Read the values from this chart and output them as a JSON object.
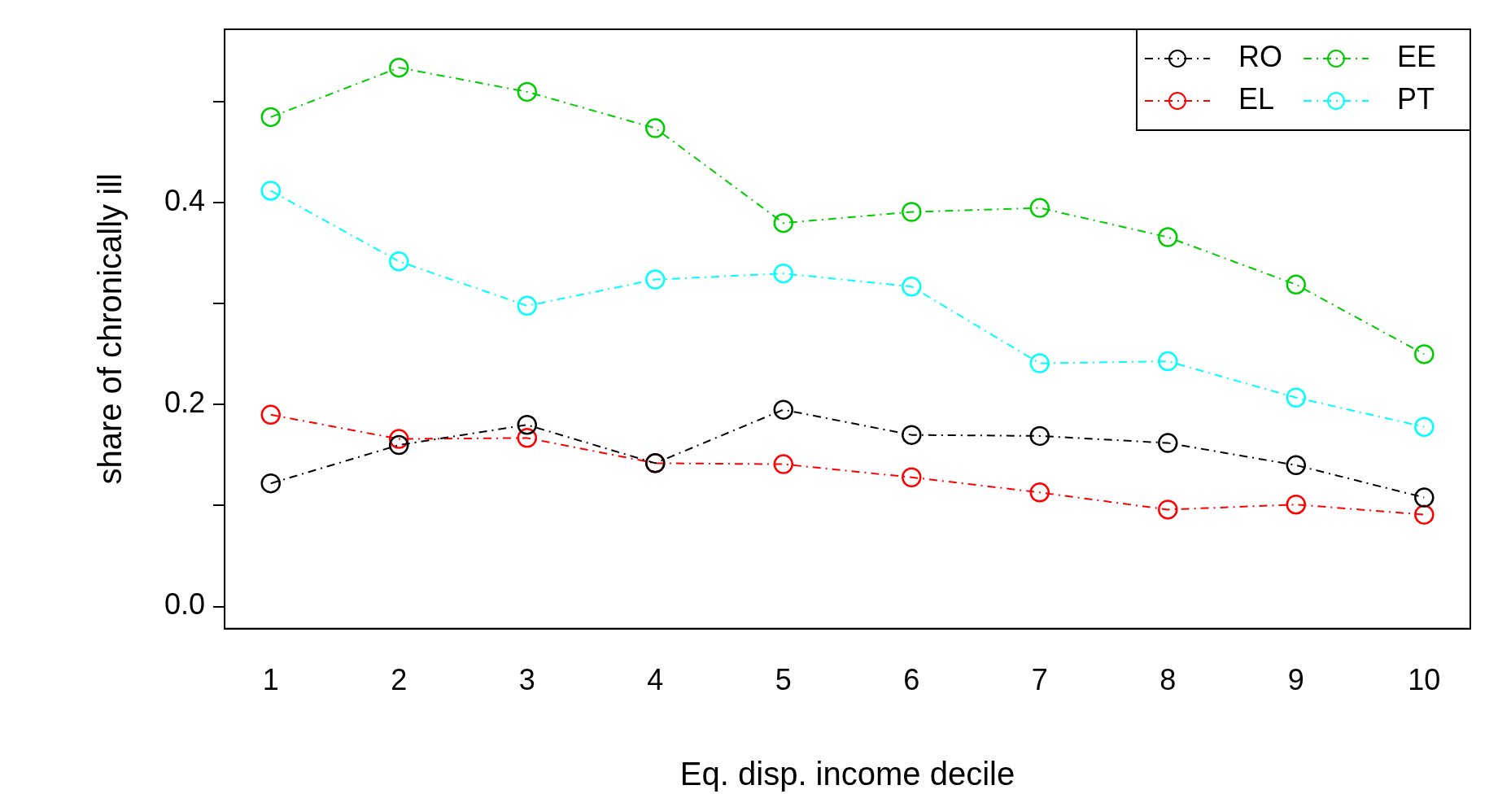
{
  "chart_data": {
    "type": "line",
    "xlabel": "Eq. disp. income decile",
    "ylabel": "share of chronically ill",
    "x": [
      1,
      2,
      3,
      4,
      5,
      6,
      7,
      8,
      9,
      10
    ],
    "xlim": [
      0.64,
      10.36
    ],
    "xticks": [
      1,
      2,
      3,
      4,
      5,
      6,
      7,
      8,
      9,
      10
    ],
    "ylim": [
      -0.022,
      0.572
    ],
    "yticks": [
      {
        "value": 0,
        "label": "0.0"
      },
      {
        "value": 0.1,
        "label": null
      },
      {
        "value": 0.2,
        "label": "0.2"
      },
      {
        "value": 0.3,
        "label": null
      },
      {
        "value": 0.4,
        "label": "0.4"
      },
      {
        "value": 0.5,
        "label": null
      }
    ],
    "grid": false,
    "legend": "top right",
    "marker": "circle",
    "line_style": "dashed",
    "series": [
      {
        "name": "RO",
        "color": "#000000",
        "values": [
          0.122,
          0.16,
          0.18,
          0.142,
          0.195,
          0.17,
          0.169,
          0.162,
          0.14,
          0.108
        ]
      },
      {
        "name": "EL",
        "color": "#ff0000",
        "values": [
          0.19,
          0.166,
          0.167,
          0.142,
          0.141,
          0.128,
          0.113,
          0.096,
          0.101,
          0.091
        ]
      },
      {
        "name": "EE",
        "color": "#00cd00",
        "values": [
          0.485,
          0.534,
          0.51,
          0.474,
          0.38,
          0.391,
          0.395,
          0.366,
          0.319,
          0.25
        ]
      },
      {
        "name": "PT",
        "color": "#00ffff",
        "values": [
          0.412,
          0.342,
          0.298,
          0.324,
          0.33,
          0.317,
          0.241,
          0.243,
          0.207,
          0.178
        ]
      }
    ]
  }
}
